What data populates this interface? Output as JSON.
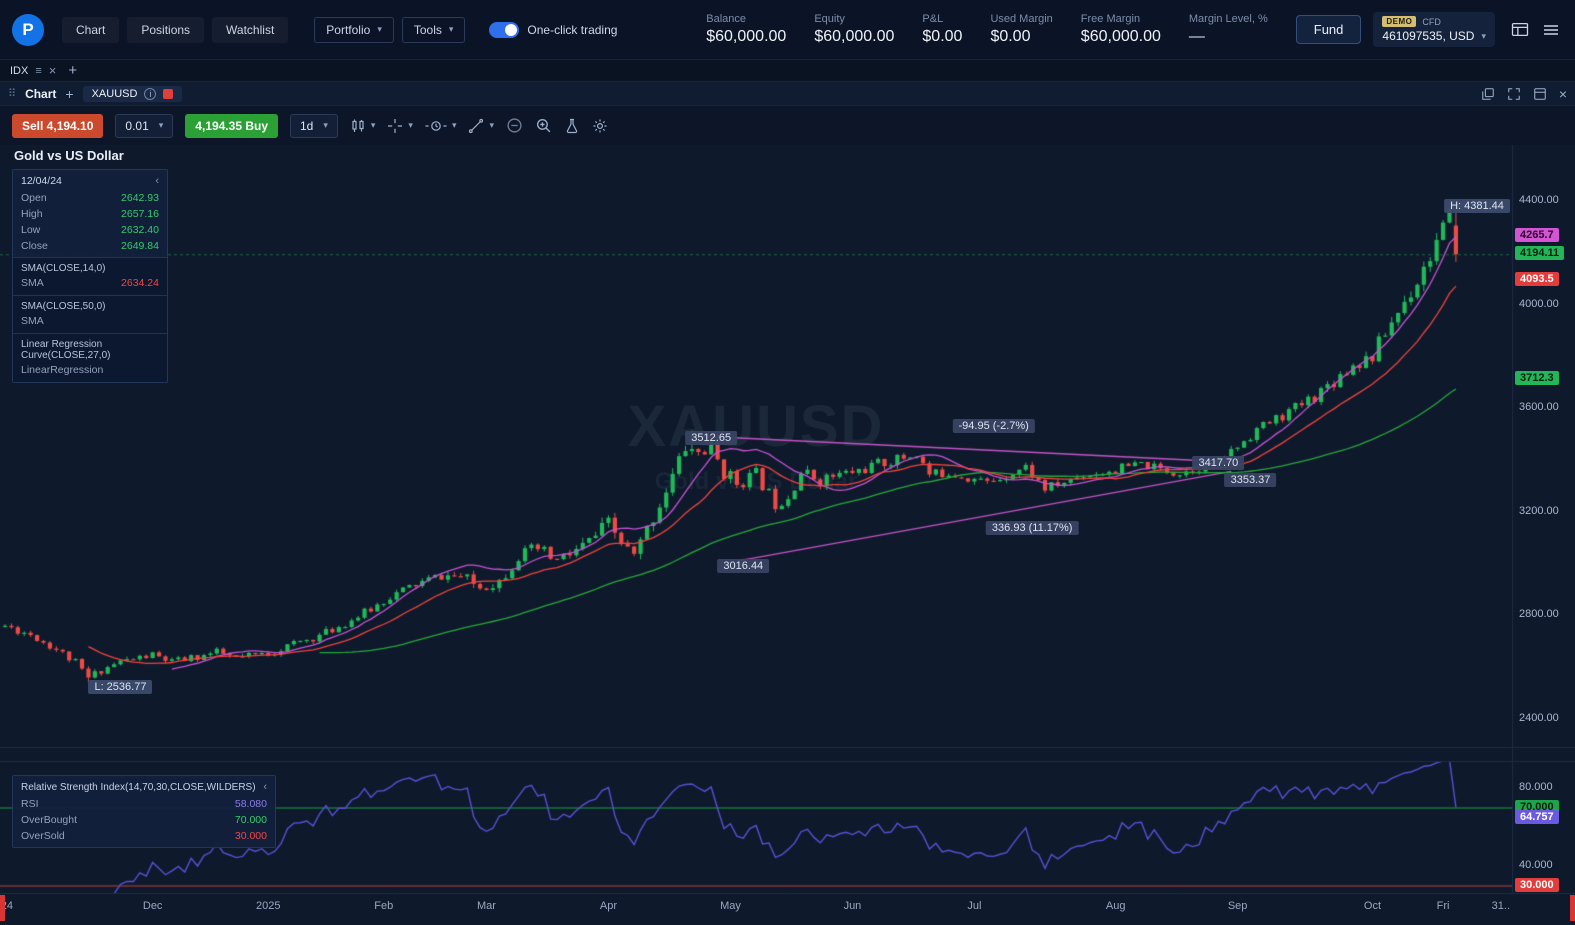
{
  "header": {
    "logo_letter": "P",
    "nav": [
      {
        "label": "Chart"
      },
      {
        "label": "Positions"
      },
      {
        "label": "Watchlist"
      }
    ],
    "dropdowns": [
      {
        "label": "Portfolio"
      },
      {
        "label": "Tools"
      }
    ],
    "one_click_label": "One-click trading",
    "stats": [
      {
        "label": "Balance",
        "value": "$60,000.00"
      },
      {
        "label": "Equity",
        "value": "$60,000.00"
      },
      {
        "label": "P&L",
        "value": "$0.00"
      },
      {
        "label": "Used Margin",
        "value": "$0.00"
      },
      {
        "label": "Free Margin",
        "value": "$60,000.00"
      },
      {
        "label": "Margin Level, %",
        "value": "—"
      }
    ],
    "fund_label": "Fund",
    "account": {
      "demo_badge": "DEMO",
      "cfd_label": "CFD",
      "number": "461097535, USD"
    }
  },
  "tabstrip": {
    "tab_label": "IDX"
  },
  "chart_toolbar": {
    "chart_label": "Chart",
    "symbol_tab": "XAUUSD"
  },
  "trade_toolbar": {
    "sell_label": "Sell 4,194.10",
    "qty": "0.01",
    "buy_label": "4,194.35 Buy",
    "timeframe": "1d"
  },
  "chart": {
    "title": "Gold vs US Dollar",
    "watermark_line1": "XAUUSD",
    "watermark_line2": "Gold vs US Dollar",
    "legend": {
      "date": "12/04/24",
      "rows": [
        {
          "label": "Open",
          "value": "2642.93"
        },
        {
          "label": "High",
          "value": "2657.16"
        },
        {
          "label": "Low",
          "value": "2632.40"
        },
        {
          "label": "Close",
          "value": "2649.84"
        }
      ],
      "sma14_title": "SMA(CLOSE,14,0)",
      "sma14_label": "SMA",
      "sma14_value": "2634.24",
      "sma50_title": "SMA(CLOSE,50,0)",
      "sma50_label": "SMA",
      "linreg_title": "Linear Regression Curve(CLOSE,27,0)",
      "linreg_label": "LinearRegression"
    },
    "rsi_legend": {
      "title": "Relative Strength Index(14,70,30,CLOSE,WILDERS)",
      "rows": [
        {
          "label": "RSI",
          "value": "58.080"
        },
        {
          "label": "OverBought",
          "value": "70.000"
        },
        {
          "label": "OverSold",
          "value": "30.000"
        }
      ]
    }
  },
  "chart_data": {
    "type": "candlestick+rsi",
    "symbol": "XAUUSD",
    "timeframe": "1d",
    "num_days": 227,
    "seed": 11,
    "last_price": 4194.11,
    "price_axis_ticks": [
      "4400.00",
      "4000.00",
      "3600.00",
      "3200.00",
      "2800.00",
      "2400.00"
    ],
    "price_axis_tick_values": [
      4400,
      4000,
      3600,
      3200,
      2800,
      2400
    ],
    "price_badges": [
      {
        "text": "4265.7",
        "value": 4265.7,
        "bg": "#d355d3",
        "tc": "#26062b"
      },
      {
        "text": "4194.11",
        "value": 4194.11,
        "bg": "#23b558",
        "tc": "#06230e"
      },
      {
        "text": "4093.5",
        "value": 4093.5,
        "bg": "#e23d3d",
        "tc": "#ffffff"
      },
      {
        "text": "3712.3",
        "value": 3712.3,
        "bg": "#23b558",
        "tc": "#06230e"
      }
    ],
    "rsi_axis_ticks": [
      {
        "text": "80.000",
        "value": 80
      },
      {
        "text": "40.000",
        "value": 40
      }
    ],
    "rsi_badges": [
      {
        "text": "70.000",
        "value": 70,
        "bg": "#1fa44c",
        "tc": "#05210d"
      },
      {
        "text": "64.757",
        "value": 64.757,
        "bg": "#6a5ae0",
        "tc": "#ffffff"
      },
      {
        "text": "30.000",
        "value": 30,
        "bg": "#e23d3d",
        "tc": "#ffffff"
      }
    ],
    "time_axis": [
      {
        "label": ")24",
        "day": 0
      },
      {
        "label": "Dec",
        "day": 23
      },
      {
        "label": "2025",
        "day": 41
      },
      {
        "label": "Feb",
        "day": 59
      },
      {
        "label": "Mar",
        "day": 75
      },
      {
        "label": "Apr",
        "day": 94
      },
      {
        "label": "May",
        "day": 113
      },
      {
        "label": "Jun",
        "day": 132
      },
      {
        "label": "Jul",
        "day": 151
      },
      {
        "label": "Aug",
        "day": 173
      },
      {
        "label": "Sep",
        "day": 192
      },
      {
        "label": "Oct",
        "day": 213
      },
      {
        "label": "Fri",
        "day": 224
      },
      {
        "label": "31..",
        "day": 233
      }
    ],
    "chart_labels": [
      {
        "text": "3512.65",
        "day": 110,
        "price": 3483
      },
      {
        "text": "-94.95 (-2.7%)",
        "day": 154,
        "price": 3530
      },
      {
        "text": "336.93 (11.17%)",
        "day": 160,
        "price": 3135
      },
      {
        "text": "3016.44",
        "day": 115,
        "price": 2988
      },
      {
        "text": "3417.70",
        "day": 189,
        "price": 3388
      },
      {
        "text": "3353.37",
        "day": 194,
        "price": 3322
      }
    ],
    "high_marker": {
      "text": "H: 4381.44",
      "day": 226,
      "value": 4381.44
    },
    "low_marker": {
      "text": "L: 2536.77",
      "day": 13,
      "value": 2536.77
    },
    "trendlines": [
      {
        "from": [
          108,
          3492
        ],
        "to": [
          190,
          3392
        ],
        "color": "#c653c6"
      },
      {
        "from": [
          114,
          3008
        ],
        "to": [
          191,
          3355
        ],
        "color": "#c653c6"
      }
    ],
    "close_anchors": [
      [
        0,
        2758
      ],
      [
        4,
        2725
      ],
      [
        8,
        2668
      ],
      [
        11,
        2615
      ],
      [
        13,
        2556
      ],
      [
        15,
        2588
      ],
      [
        18,
        2620
      ],
      [
        23,
        2645
      ],
      [
        26,
        2618
      ],
      [
        30,
        2638
      ],
      [
        33,
        2655
      ],
      [
        36,
        2632
      ],
      [
        41,
        2652
      ],
      [
        45,
        2688
      ],
      [
        49,
        2720
      ],
      [
        53,
        2768
      ],
      [
        57,
        2822
      ],
      [
        60,
        2872
      ],
      [
        64,
        2918
      ],
      [
        68,
        2952
      ],
      [
        71,
        2948
      ],
      [
        74,
        2908
      ],
      [
        77,
        2932
      ],
      [
        80,
        3028
      ],
      [
        83,
        3052
      ],
      [
        86,
        3008
      ],
      [
        90,
        3062
      ],
      [
        94,
        3148
      ],
      [
        96,
        3078
      ],
      [
        98,
        3022
      ],
      [
        100,
        3128
      ],
      [
        102,
        3232
      ],
      [
        104,
        3338
      ],
      [
        106,
        3448
      ],
      [
        108,
        3428
      ],
      [
        110,
        3442
      ],
      [
        112,
        3352
      ],
      [
        114,
        3312
      ],
      [
        117,
        3342
      ],
      [
        120,
        3232
      ],
      [
        122,
        3262
      ],
      [
        124,
        3352
      ],
      [
        127,
        3322
      ],
      [
        130,
        3342
      ],
      [
        133,
        3358
      ],
      [
        136,
        3382
      ],
      [
        139,
        3402
      ],
      [
        142,
        3422
      ],
      [
        144,
        3342
      ],
      [
        147,
        3352
      ],
      [
        150,
        3332
      ],
      [
        153,
        3312
      ],
      [
        156,
        3342
      ],
      [
        159,
        3372
      ],
      [
        162,
        3288
      ],
      [
        165,
        3312
      ],
      [
        168,
        3342
      ],
      [
        171,
        3352
      ],
      [
        174,
        3368
      ],
      [
        177,
        3382
      ],
      [
        180,
        3362
      ],
      [
        183,
        3348
      ],
      [
        186,
        3372
      ],
      [
        189,
        3392
      ],
      [
        192,
        3452
      ],
      [
        195,
        3518
      ],
      [
        198,
        3558
      ],
      [
        201,
        3598
      ],
      [
        204,
        3648
      ],
      [
        207,
        3708
      ],
      [
        210,
        3768
      ],
      [
        213,
        3802
      ],
      [
        215,
        3892
      ],
      [
        217,
        3972
      ],
      [
        219,
        4052
      ],
      [
        221,
        4142
      ],
      [
        223,
        4242
      ],
      [
        225,
        4332
      ],
      [
        226,
        4194
      ]
    ],
    "vol_anchors": [
      [
        0,
        1.0
      ],
      [
        60,
        1.0
      ],
      [
        95,
        1.9
      ],
      [
        112,
        1.5
      ],
      [
        145,
        1.0
      ],
      [
        190,
        0.9
      ],
      [
        205,
        1.2
      ],
      [
        226,
        1.7
      ]
    ],
    "forced_points": [
      {
        "day": 107,
        "field": "h",
        "value": 3512.65
      },
      {
        "day": 13,
        "field": "l",
        "value": 2536.77
      }
    ],
    "last_candle": {
      "o": 4305,
      "h": 4381.44,
      "l": 4165,
      "c": 4194.11
    },
    "rsi_levels": {
      "overbought": 70,
      "oversold": 30
    },
    "colors": {
      "up": "#20b95a",
      "down": "#ee4b45",
      "sma14": "#f0433f",
      "sma50": "#27a73b",
      "linreg": "#c753d4",
      "rsi": "#5b4fd6",
      "overbought": "#1e9e46",
      "oversold": "#c03a3a"
    }
  }
}
